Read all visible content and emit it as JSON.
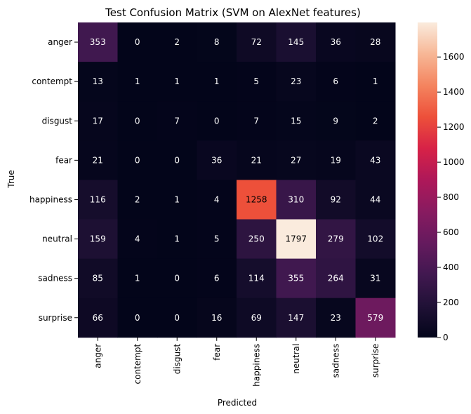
{
  "chart_data": {
    "type": "heatmap",
    "title": "Test Confusion Matrix (SVM on AlexNet features)",
    "xlabel": "Predicted",
    "ylabel": "True",
    "row_labels": [
      "anger",
      "contempt",
      "disgust",
      "fear",
      "happiness",
      "neutral",
      "sadness",
      "surprise"
    ],
    "col_labels": [
      "anger",
      "contempt",
      "disgust",
      "fear",
      "happiness",
      "neutral",
      "sadness",
      "surprise"
    ],
    "values": [
      [
        353,
        0,
        2,
        8,
        72,
        145,
        36,
        28
      ],
      [
        13,
        1,
        1,
        1,
        5,
        23,
        6,
        1
      ],
      [
        17,
        0,
        7,
        0,
        7,
        15,
        9,
        2
      ],
      [
        21,
        0,
        0,
        36,
        21,
        27,
        19,
        43
      ],
      [
        116,
        2,
        1,
        4,
        1258,
        310,
        92,
        44
      ],
      [
        159,
        4,
        1,
        5,
        250,
        1797,
        279,
        102
      ],
      [
        85,
        1,
        0,
        6,
        114,
        355,
        264,
        31
      ],
      [
        66,
        0,
        0,
        16,
        69,
        147,
        23,
        579
      ]
    ],
    "colormap": "rocket",
    "colorbar": {
      "range": [
        0,
        1797
      ],
      "ticks": [
        0,
        200,
        400,
        600,
        800,
        1000,
        1200,
        1400,
        1600
      ]
    },
    "grid": false
  }
}
